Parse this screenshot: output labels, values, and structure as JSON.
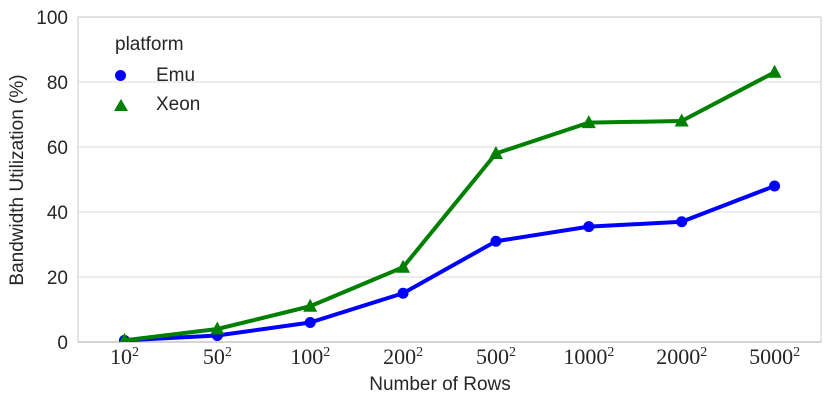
{
  "chart_data": {
    "type": "line",
    "title": "",
    "xlabel": "Number of Rows",
    "ylabel": "Bandwidth Utilization (%)",
    "legend_title": "platform",
    "legend_position": "upper-left-inside",
    "grid": "horizontal",
    "ylim": [
      0,
      100
    ],
    "yticks": [
      0,
      20,
      40,
      60,
      80,
      100
    ],
    "categories": [
      {
        "base": "10",
        "exp": "2"
      },
      {
        "base": "50",
        "exp": "2"
      },
      {
        "base": "100",
        "exp": "2"
      },
      {
        "base": "200",
        "exp": "2"
      },
      {
        "base": "500",
        "exp": "2"
      },
      {
        "base": "1000",
        "exp": "2"
      },
      {
        "base": "2000",
        "exp": "2"
      },
      {
        "base": "5000",
        "exp": "2"
      }
    ],
    "series": [
      {
        "name": "Emu",
        "marker": "circle",
        "color": "#0000ff",
        "values": [
          0.5,
          2,
          6,
          15,
          31,
          35.5,
          37,
          48
        ]
      },
      {
        "name": "Xeon",
        "marker": "triangle-up",
        "color": "#008000",
        "values": [
          0.5,
          4,
          11,
          23,
          58,
          67.5,
          68,
          83
        ]
      }
    ],
    "colors": {
      "grid": "#e2e2e2",
      "frame": "#d5d5d5",
      "bottom_spine": "#c9c9c9",
      "text": "#262626"
    }
  }
}
